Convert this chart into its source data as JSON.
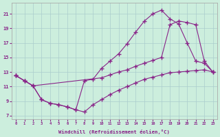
{
  "xlabel": "Windchill (Refroidissement éolien,°C)",
  "bg_color": "#cceedd",
  "line_color": "#882288",
  "xlim": [
    -0.5,
    23.5
  ],
  "ylim": [
    6.5,
    22.5
  ],
  "xticks": [
    0,
    1,
    2,
    3,
    4,
    5,
    6,
    7,
    8,
    9,
    10,
    11,
    12,
    13,
    14,
    15,
    16,
    17,
    18,
    19,
    20,
    21,
    22,
    23
  ],
  "yticks": [
    7,
    9,
    11,
    13,
    15,
    17,
    19,
    21
  ],
  "line1_x": [
    0,
    1,
    2,
    3,
    4,
    5,
    6,
    7,
    8,
    9,
    10,
    11,
    12,
    13,
    14,
    15,
    16,
    17,
    18,
    19,
    20,
    21,
    22,
    23
  ],
  "line1_y": [
    12.5,
    11.8,
    11.1,
    9.2,
    8.7,
    8.5,
    8.2,
    7.8,
    11.8,
    12.0,
    13.5,
    14.5,
    15.5,
    16.9,
    18.5,
    20.0,
    21.0,
    21.5,
    20.3,
    19.6,
    17.0,
    14.5,
    14.2,
    13.0
  ],
  "line2_x": [
    0,
    1,
    2,
    3,
    4,
    5,
    6,
    7,
    8,
    9,
    10,
    11,
    12,
    13,
    14,
    15,
    16,
    17,
    18,
    19,
    20,
    21,
    22,
    23
  ],
  "line2_y": [
    12.5,
    11.8,
    11.1,
    9.2,
    8.7,
    8.5,
    8.2,
    7.8,
    7.5,
    8.5,
    9.2,
    9.9,
    10.5,
    11.0,
    11.5,
    12.0,
    12.3,
    12.6,
    12.9,
    13.0,
    13.1,
    13.2,
    13.3,
    13.0
  ],
  "line3_x": [
    0,
    1,
    2,
    10,
    11,
    12,
    13,
    14,
    15,
    16,
    17,
    18,
    19,
    20,
    21,
    22,
    23
  ],
  "line3_y": [
    12.5,
    11.8,
    11.1,
    12.2,
    12.6,
    13.0,
    13.3,
    13.8,
    14.2,
    14.6,
    15.0,
    19.5,
    20.0,
    19.8,
    19.5,
    14.5,
    13.0
  ]
}
